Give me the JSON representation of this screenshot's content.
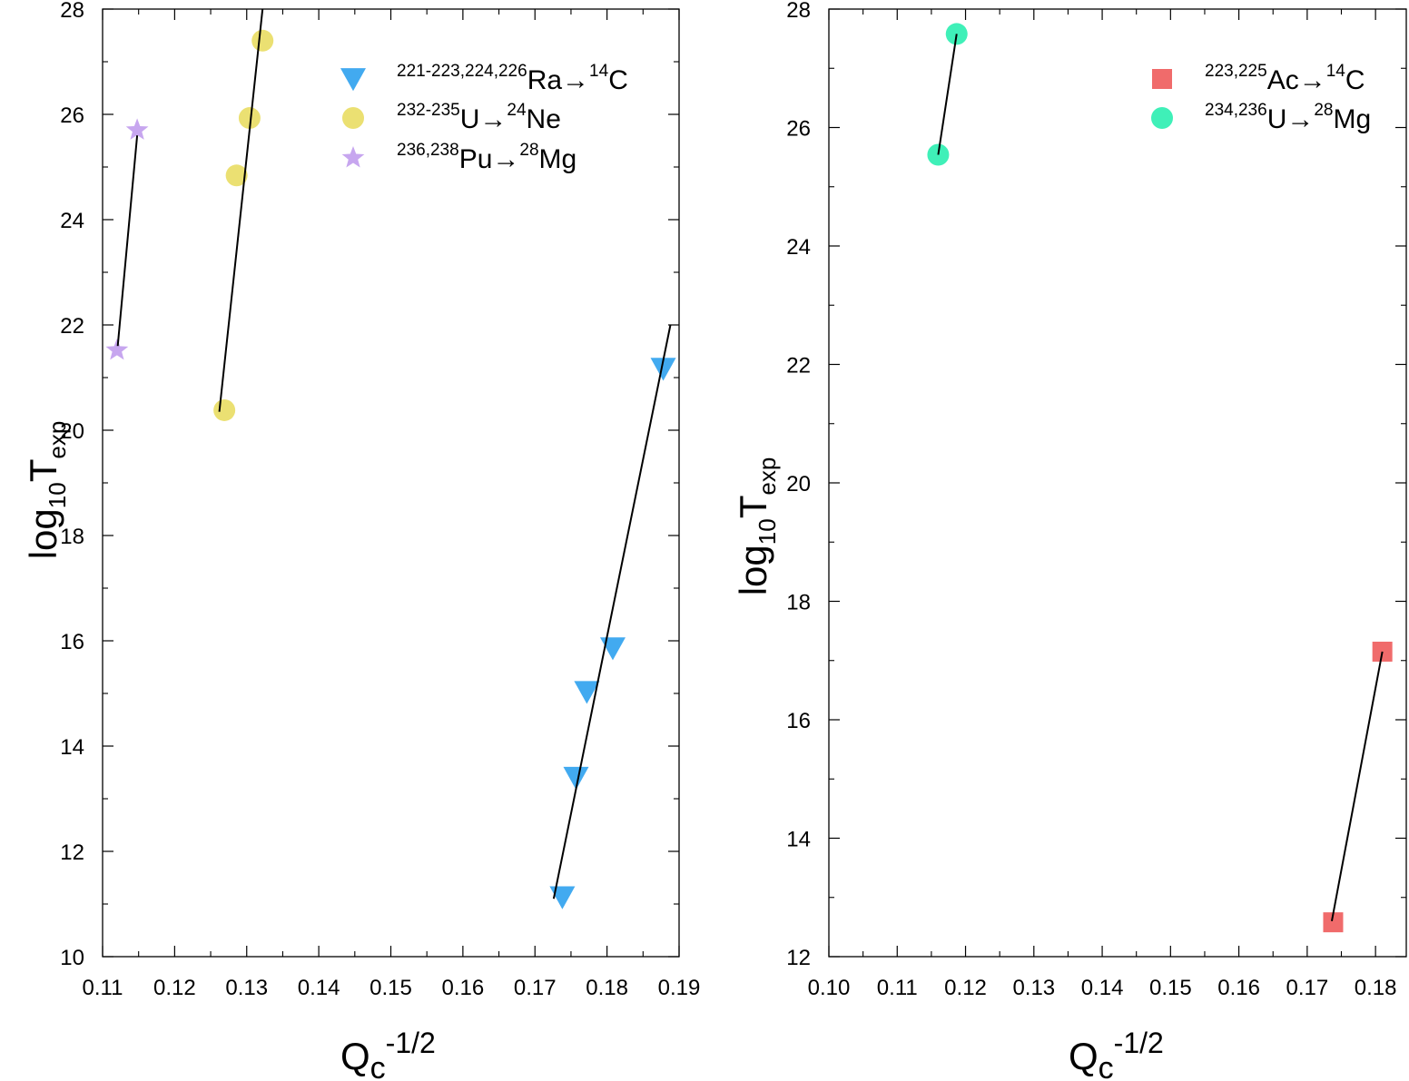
{
  "chart_data": [
    {
      "type": "scatter",
      "id": "left",
      "xlabel": {
        "main": "Q",
        "sub": "c",
        "sup": "-1/2"
      },
      "ylabel": {
        "main": "log",
        "sub1": "10",
        "main2": "T",
        "sub2": "exp"
      },
      "xlim": [
        0.11,
        0.19
      ],
      "ylim": [
        10,
        28
      ],
      "xticks": [
        0.11,
        0.12,
        0.13,
        0.14,
        0.15,
        0.16,
        0.17,
        0.18,
        0.19
      ],
      "xtick_labels": [
        "0.11",
        "0.12",
        "0.13",
        "0.14",
        "0.15",
        "0.16",
        "0.17",
        "0.18",
        "0.19"
      ],
      "yticks": [
        10,
        12,
        14,
        16,
        18,
        20,
        22,
        24,
        26,
        28
      ],
      "ytick_labels": [
        "10",
        "12",
        "14",
        "16",
        "18",
        "20",
        "22",
        "24",
        "26",
        "28"
      ],
      "legend_position": "top-right",
      "series": [
        {
          "name": "221-223,224,226Ra→14C",
          "legend": {
            "sup1": "221-223,224,226",
            "mid": "Ra→",
            "sup2": "14",
            "end": "C"
          },
          "marker": "triangle-down",
          "color": "#42aaf0",
          "points": [
            [
              0.1738,
              11.13
            ],
            [
              0.1757,
              13.4
            ],
            [
              0.1772,
              15.03
            ],
            [
              0.1808,
              15.86
            ],
            [
              0.1878,
              21.17
            ]
          ],
          "fit": [
            [
              0.1726,
              11.1
            ],
            [
              0.1888,
              22.0
            ]
          ]
        },
        {
          "name": "232-235U→24Ne",
          "legend": {
            "sup1": "232-235",
            "mid": "U→",
            "sup2": "24",
            "end": "Ne"
          },
          "marker": "circle",
          "color": "#ebe072",
          "points": [
            [
              0.1269,
              20.38
            ],
            [
              0.1286,
              24.84
            ],
            [
              0.1304,
              25.93
            ],
            [
              0.1322,
              27.4
            ]
          ],
          "fit": [
            [
              0.1262,
              20.35
            ],
            [
              0.1322,
              28.0
            ]
          ]
        },
        {
          "name": "236,238Pu→28Mg",
          "legend": {
            "sup1": "236,238",
            "mid": "Pu→",
            "sup2": "28",
            "end": "Mg"
          },
          "marker": "star",
          "color": "#c7a6ef",
          "points": [
            [
              0.112,
              21.52
            ],
            [
              0.1148,
              25.7
            ]
          ],
          "fit": [
            [
              0.1121,
              21.6
            ],
            [
              0.1148,
              25.6
            ]
          ]
        }
      ]
    },
    {
      "type": "scatter",
      "id": "right",
      "xlabel": {
        "main": "Q",
        "sub": "c",
        "sup": "-1/2"
      },
      "ylabel": {
        "main": "log",
        "sub1": "10",
        "main2": "T",
        "sub2": "exp"
      },
      "xlim": [
        0.1,
        0.1845
      ],
      "ylim": [
        12,
        28
      ],
      "xticks": [
        0.1,
        0.11,
        0.12,
        0.13,
        0.14,
        0.15,
        0.16,
        0.17,
        0.18
      ],
      "xtick_labels": [
        "0.10",
        "0.11",
        "0.12",
        "0.13",
        "0.14",
        "0.15",
        "0.16",
        "0.17",
        "0.18"
      ],
      "yticks": [
        12,
        14,
        16,
        18,
        20,
        22,
        24,
        26,
        28
      ],
      "ytick_labels": [
        "12",
        "14",
        "16",
        "18",
        "20",
        "22",
        "24",
        "26",
        "28"
      ],
      "legend_position": "top-right",
      "series": [
        {
          "name": "223,225Ac→14C",
          "legend": {
            "sup1": "223,225",
            "mid": "Ac→",
            "sup2": "14",
            "end": "C"
          },
          "marker": "square",
          "color": "#f06b6b",
          "points": [
            [
              0.1738,
              12.58
            ],
            [
              0.181,
              17.15
            ]
          ],
          "fit": [
            [
              0.1736,
              12.6
            ],
            [
              0.181,
              17.15
            ]
          ]
        },
        {
          "name": "234,236U→28Mg",
          "legend": {
            "sup1": "234,236",
            "mid": "U→",
            "sup2": "28",
            "end": "Mg"
          },
          "marker": "circle",
          "color": "#3ff0b8",
          "points": [
            [
              0.116,
              25.54
            ],
            [
              0.1187,
              27.58
            ]
          ],
          "fit": [
            [
              0.116,
              25.54
            ],
            [
              0.1187,
              27.58
            ]
          ]
        }
      ]
    }
  ]
}
